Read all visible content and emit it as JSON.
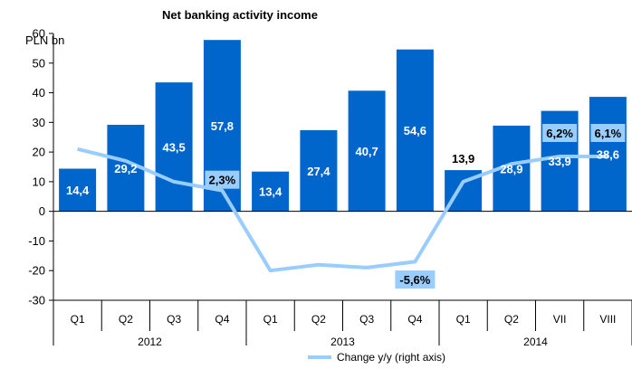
{
  "chart_data": {
    "type": "bar",
    "title": "Net banking activity income",
    "unit_label": "PLN bn",
    "categories": [
      "Q1",
      "Q2",
      "Q3",
      "Q4",
      "Q1",
      "Q2",
      "Q3",
      "Q4",
      "Q1",
      "Q2",
      "VII",
      "VIII"
    ],
    "groups": [
      {
        "label": "2012",
        "count": 4
      },
      {
        "label": "2013",
        "count": 4
      },
      {
        "label": "2014",
        "count": 4
      }
    ],
    "ylim": [
      -30,
      60
    ],
    "yticks": [
      -30,
      -20,
      -10,
      0,
      10,
      20,
      30,
      40,
      50,
      60
    ],
    "series": [
      {
        "type": "bar",
        "values": [
          14.4,
          29.2,
          43.5,
          57.8,
          13.4,
          27.4,
          40.7,
          54.6,
          13.9,
          28.9,
          33.9,
          38.6
        ],
        "labels": [
          "14,4",
          "29,2",
          "43,5",
          "57,8",
          "13,4",
          "27,4",
          "40,7",
          "54,6",
          "13,9",
          "28,9",
          "33,9",
          "38,6"
        ],
        "color": "#0066CC"
      },
      {
        "type": "line",
        "name": "Change y/y (right axis)",
        "values": [
          21,
          17,
          10,
          7,
          -20,
          -18,
          -19,
          -17,
          10,
          16,
          18.5,
          18.5
        ],
        "color": "#99CCFF",
        "annotations": [
          {
            "index": 3,
            "label": "2,3%"
          },
          {
            "index": 7,
            "label": "-5,6%"
          },
          {
            "index": 10,
            "label": "6,2%"
          },
          {
            "index": 11,
            "label": "6,1%"
          }
        ]
      }
    ],
    "grid": false,
    "legend": "bottom-right"
  }
}
